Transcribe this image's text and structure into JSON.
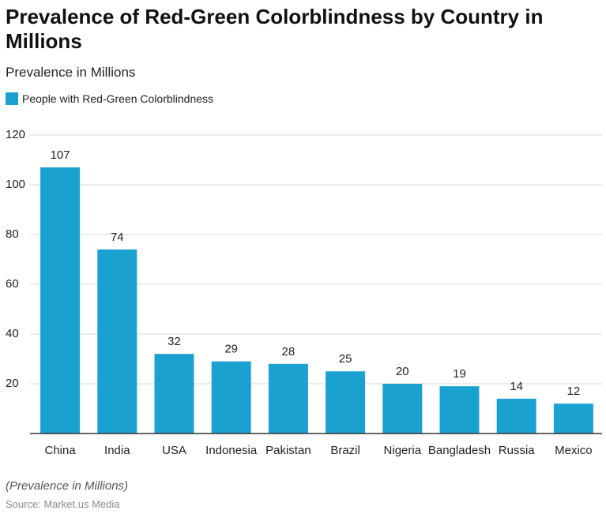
{
  "chart_data": {
    "type": "bar",
    "title": "Prevalence of Red-Green Colorblindness by Country in Millions",
    "subtitle": "Prevalence in Millions",
    "categories": [
      "China",
      "India",
      "USA",
      "Indonesia",
      "Pakistan",
      "Brazil",
      "Nigeria",
      "Bangladesh",
      "Russia",
      "Mexico"
    ],
    "series": [
      {
        "name": "People with Red-Green Colorblindness",
        "color": "#1ba1cf",
        "values": [
          107,
          74,
          32,
          29,
          28,
          25,
          20,
          19,
          14,
          12
        ]
      }
    ],
    "ylim": [
      0,
      120
    ],
    "yticks": [
      20,
      40,
      60,
      80,
      100,
      120
    ],
    "grid": true,
    "note": "(Prevalence in Millions)",
    "source": "Source: Market.us Media"
  }
}
